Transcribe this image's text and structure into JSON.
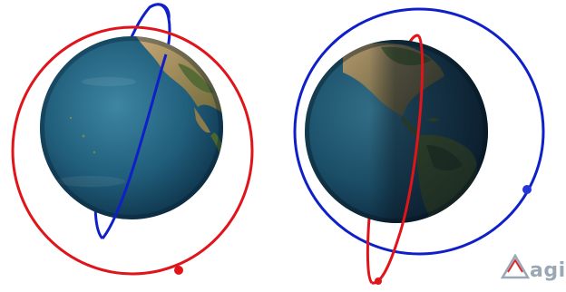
{
  "colors": {
    "background": "#ffffff",
    "orbit_red": "#e0141b",
    "orbit_blue": "#1020c8",
    "ocean_dark": "#0f3550",
    "ocean_mid": "#1f5a78",
    "ocean_light": "#3a7f9a",
    "land_green": "#4f6a2e",
    "land_tan": "#a98d5e",
    "land_dark": "#2e3d22",
    "night_shadow": "#0a1420",
    "logo_gray": "#9aa8b6",
    "logo_red": "#d42a2a"
  },
  "scenes": [
    {
      "name": "view-pacific",
      "globe_icon": "earth-globe-pacific-icon",
      "orbits": [
        {
          "name": "red-orbit",
          "color": "red",
          "satellite": true
        },
        {
          "name": "blue-orbit",
          "color": "blue",
          "satellite": false
        }
      ]
    },
    {
      "name": "view-americas",
      "globe_icon": "earth-globe-americas-icon",
      "orbits": [
        {
          "name": "blue-orbit",
          "color": "blue",
          "satellite": true
        },
        {
          "name": "red-orbit",
          "color": "red",
          "satellite": true
        }
      ]
    }
  ],
  "logo": {
    "icon": "agi-logo-icon",
    "text": "agi"
  }
}
